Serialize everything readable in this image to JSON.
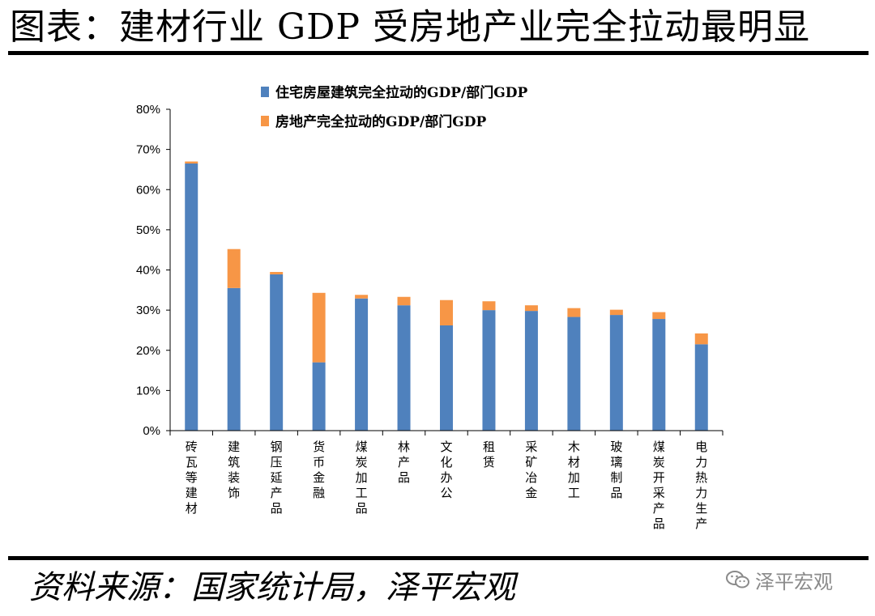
{
  "header": {
    "title": "图表：建材行业 GDP 受房地产业完全拉动最明显"
  },
  "footer": {
    "source": "资料来源：国家统计局，泽平宏观",
    "watermark": "泽平宏观",
    "watermark_icon": "wechat-icon"
  },
  "colors": {
    "series1": "#4F81BD",
    "series2": "#F79646"
  },
  "chart_data": {
    "type": "bar",
    "stacked": true,
    "categories": [
      "砖瓦等建材",
      "建筑装饰",
      "钢压延产品",
      "货币金融",
      "煤炭加工品",
      "林产品",
      "文化办公",
      "租赁",
      "采矿冶金",
      "木材加工",
      "玻璃制品",
      "煤炭开采产品",
      "电力热力生产"
    ],
    "series": [
      {
        "name": "住宅房屋建筑完全拉动的GDP/部门GDP",
        "values": [
          66.5,
          35.5,
          38.9,
          17.0,
          32.9,
          31.2,
          26.2,
          30.0,
          29.8,
          28.3,
          28.8,
          27.8,
          21.5
        ]
      },
      {
        "name": "房地产完全拉动的GDP/部门GDP",
        "values": [
          0.5,
          9.7,
          0.6,
          17.3,
          0.9,
          2.1,
          6.3,
          2.2,
          1.4,
          2.2,
          1.3,
          1.7,
          2.7
        ]
      }
    ],
    "yticks": [
      "0%",
      "10%",
      "20%",
      "30%",
      "40%",
      "50%",
      "60%",
      "70%",
      "80%"
    ],
    "ylim": [
      0,
      80
    ],
    "legend_position": "top",
    "grid": false
  }
}
